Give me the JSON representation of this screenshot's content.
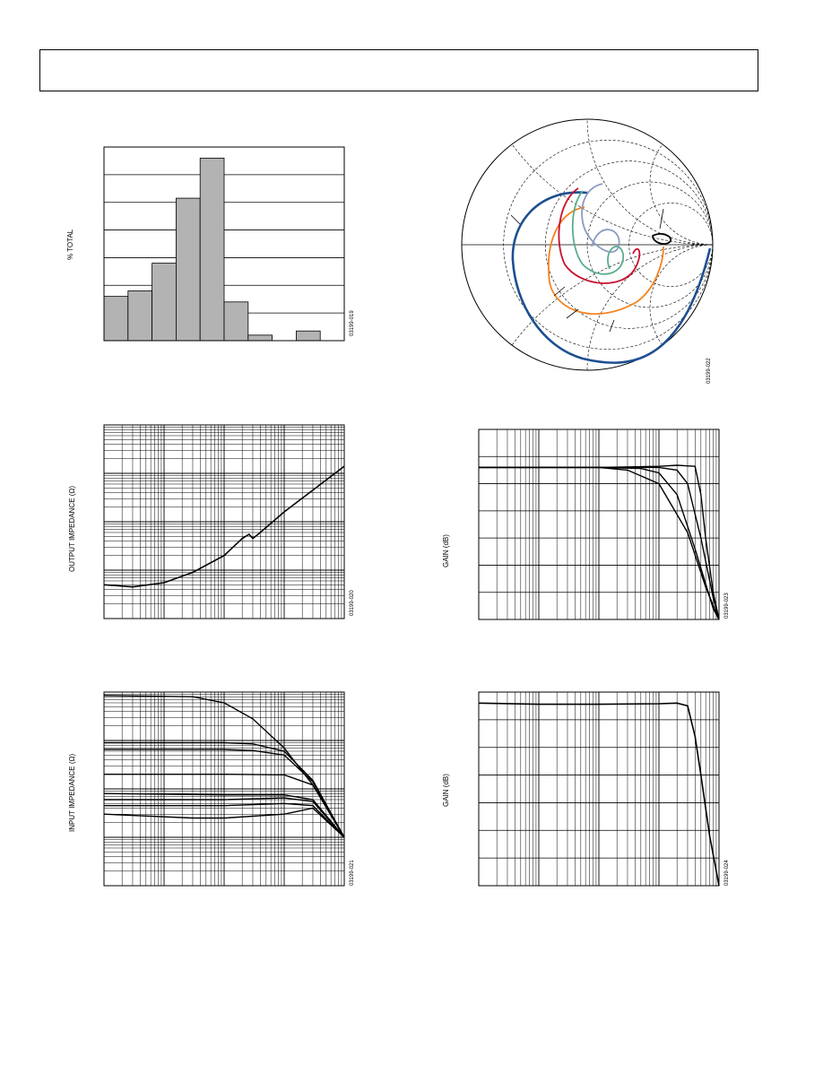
{
  "header": {
    "title": ""
  },
  "chart_data": [
    {
      "type": "bar",
      "ylabel": "% TOTAL",
      "figure_id": "03199-019",
      "ylim": [
        0,
        7
      ],
      "categories": [
        "",
        "",
        "",
        "",
        "",
        "",
        "",
        "",
        "",
        ""
      ],
      "values": [
        1.6,
        1.8,
        2.8,
        5.15,
        6.6,
        1.4,
        0.2,
        0,
        0.35,
        0
      ],
      "grid": true
    },
    {
      "type": "line",
      "subtype": "smith-chart",
      "figure_id": "03199-022",
      "series_colors": [
        "#1d4f91",
        "#f5821f",
        "#c8102e",
        "#5aae8c",
        "#8a9bbf",
        "#000000"
      ]
    },
    {
      "type": "line",
      "ylabel": "OUTPUT IMPEDANCE (Ω)",
      "figure_id": "03199-020",
      "xscale": "log",
      "yscale": "log",
      "xlim": [
        1,
        10000
      ],
      "ylim": [
        0.01,
        100
      ],
      "x": [
        1,
        3,
        10,
        30,
        100,
        200,
        260,
        300,
        400,
        1000,
        3000,
        10000
      ],
      "y": [
        0.05,
        0.045,
        0.055,
        0.09,
        0.2,
        0.45,
        0.55,
        0.45,
        0.6,
        1.6,
        4.5,
        14
      ],
      "grid": true
    },
    {
      "type": "line",
      "ylabel": "GAIN (dB)",
      "figure_id": "03199-023",
      "xscale": "log",
      "xlim": [
        1,
        10000
      ],
      "ylim": [
        -35,
        0
      ],
      "series": [
        {
          "x": [
            1,
            100,
            300,
            1000,
            3000,
            6000,
            10000
          ],
          "y": [
            -7,
            -7,
            -7.5,
            -10,
            -19,
            -29,
            -35
          ]
        },
        {
          "x": [
            1,
            100,
            500,
            1000,
            2000,
            4000,
            8000,
            10000
          ],
          "y": [
            -7,
            -7,
            -7.2,
            -8,
            -12,
            -22,
            -33,
            -35
          ]
        },
        {
          "x": [
            1,
            100,
            1000,
            2000,
            3000,
            5000,
            8000,
            10000
          ],
          "y": [
            -7,
            -7,
            -7,
            -7.5,
            -10,
            -20,
            -31,
            -35
          ]
        },
        {
          "x": [
            1,
            100,
            1000,
            2000,
            4000,
            5000,
            6000,
            8000,
            10000
          ],
          "y": [
            -7,
            -7,
            -6.8,
            -6.6,
            -6.8,
            -12,
            -20,
            -30,
            -35
          ]
        }
      ],
      "grid": true
    },
    {
      "type": "line",
      "ylabel": "INPUT IMPEDANCE (Ω)",
      "figure_id": "03199-021",
      "xscale": "log",
      "yscale": "log",
      "xlim": [
        1,
        10000
      ],
      "ylim": [
        1,
        10000
      ],
      "series": [
        {
          "x": [
            1,
            30,
            100,
            300,
            1000,
            3000,
            10000
          ],
          "y": [
            8500,
            8000,
            6000,
            2800,
            700,
            120,
            10
          ]
        },
        {
          "x": [
            1,
            100,
            300,
            1000,
            3000,
            10000
          ],
          "y": [
            900,
            900,
            850,
            600,
            150,
            10
          ]
        },
        {
          "x": [
            1,
            100,
            300,
            1000,
            3000,
            10000
          ],
          "y": [
            650,
            650,
            620,
            500,
            140,
            10
          ]
        },
        {
          "x": [
            1,
            100,
            1000,
            3000,
            10000
          ],
          "y": [
            200,
            200,
            195,
            120,
            10
          ]
        },
        {
          "x": [
            1,
            100,
            1000,
            3000,
            10000
          ],
          "y": [
            80,
            75,
            75,
            60,
            10
          ]
        },
        {
          "x": [
            1,
            100,
            1000,
            3000,
            10000
          ],
          "y": [
            60,
            60,
            65,
            55,
            10
          ]
        },
        {
          "x": [
            1,
            100,
            1000,
            3000,
            10000
          ],
          "y": [
            45,
            45,
            50,
            45,
            10
          ]
        },
        {
          "x": [
            1,
            30,
            100,
            1000,
            3000,
            10000
          ],
          "y": [
            30,
            25,
            25,
            30,
            40,
            10
          ]
        }
      ],
      "grid": true
    },
    {
      "type": "line",
      "ylabel": "GAIN (dB)",
      "figure_id": "03199-024",
      "xscale": "log",
      "xlim": [
        1,
        10000
      ],
      "ylim": [
        -35,
        0
      ],
      "x": [
        1,
        10,
        100,
        1000,
        2000,
        3000,
        4000,
        5000,
        7000,
        10000
      ],
      "y": [
        -2,
        -2.2,
        -2.2,
        -2.1,
        -2,
        -2.5,
        -8,
        -15,
        -26,
        -35
      ],
      "grid": true
    }
  ]
}
